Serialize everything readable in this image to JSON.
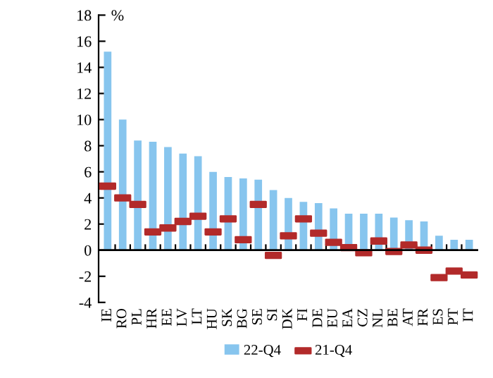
{
  "chart_data": {
    "type": "bar",
    "ylabel": "%",
    "categories": [
      "IE",
      "RO",
      "PL",
      "HR",
      "EE",
      "LV",
      "LT",
      "HU",
      "SK",
      "BG",
      "SE",
      "SI",
      "DK",
      "FI",
      "DE",
      "EU",
      "EA",
      "CZ",
      "NL",
      "BE",
      "AT",
      "FR",
      "ES",
      "PT",
      "IT"
    ],
    "series": [
      {
        "name": "22-Q4",
        "color": "#87c5ee",
        "values": [
          15.2,
          10.0,
          8.4,
          8.3,
          7.9,
          7.4,
          7.2,
          6.0,
          5.6,
          5.5,
          5.4,
          4.6,
          4.0,
          3.7,
          3.6,
          3.2,
          2.8,
          2.8,
          2.8,
          2.5,
          2.3,
          2.2,
          1.1,
          0.8,
          0.8
        ]
      },
      {
        "name": "21-Q4",
        "type": "scatter",
        "color": "#b22a2a",
        "values": [
          4.9,
          4.0,
          3.5,
          1.4,
          1.7,
          2.2,
          2.6,
          1.4,
          2.4,
          0.8,
          3.5,
          -0.4,
          1.1,
          2.4,
          1.3,
          0.6,
          0.2,
          -0.2,
          0.7,
          -0.1,
          0.4,
          0.0,
          -2.1,
          -1.6,
          -1.9
        ]
      }
    ],
    "ylim": [
      -4,
      18
    ],
    "yticks": [
      -4,
      -2,
      0,
      2,
      4,
      6,
      8,
      10,
      12,
      14,
      16,
      18
    ],
    "grid": false,
    "ref_lines": [
      {
        "axis": "y",
        "value": 0,
        "color": "#000000"
      }
    ],
    "legend": "bottom"
  }
}
